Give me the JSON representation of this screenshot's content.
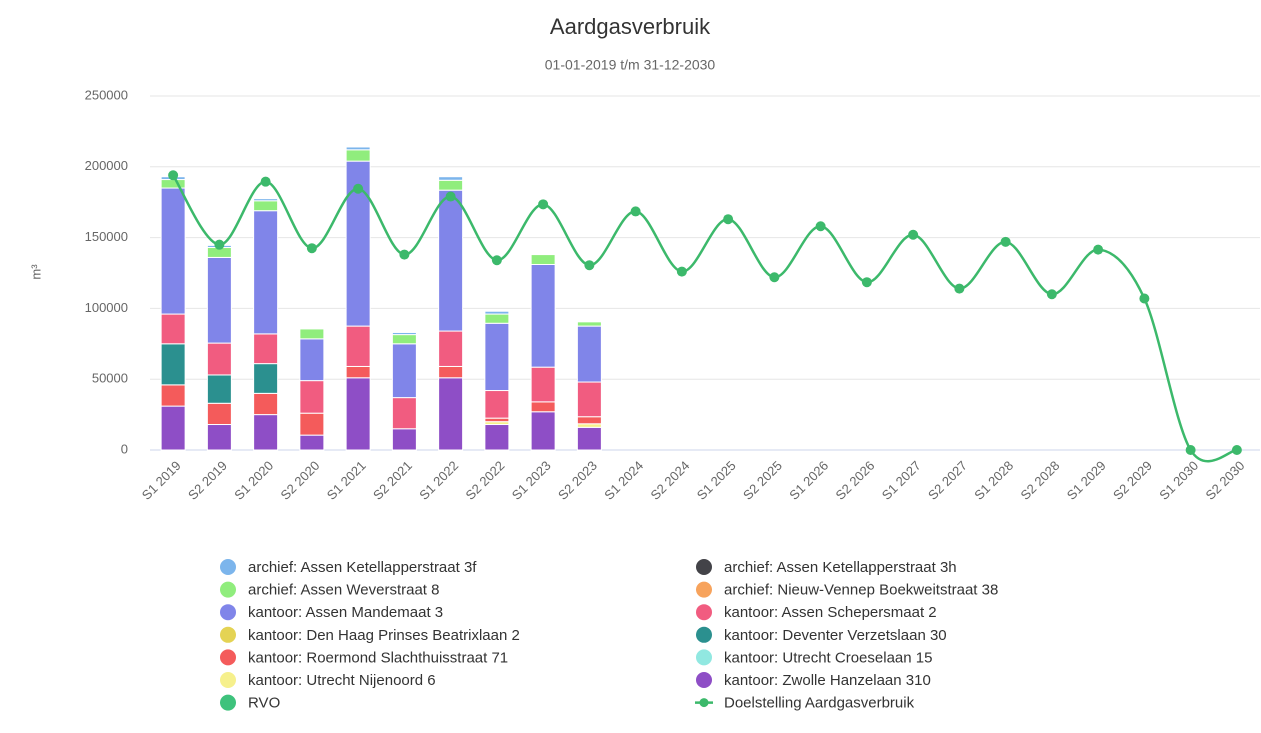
{
  "chart_data": {
    "type": "stacked-bar-line",
    "title": "Aardgasverbruik",
    "subtitle": "01-01-2019 t/m 31-12-2030",
    "y_axis_label": "m³",
    "categories": [
      "S1 2019",
      "S2 2019",
      "S1 2020",
      "S2 2020",
      "S1 2021",
      "S2 2021",
      "S1 2022",
      "S2 2022",
      "S1 2023",
      "S2 2023",
      "S1 2024",
      "S2 2024",
      "S1 2025",
      "S2 2025",
      "S1 2026",
      "S2 2026",
      "S1 2027",
      "S2 2027",
      "S1 2028",
      "S2 2028",
      "S1 2029",
      "S2 2029",
      "S1 2030",
      "S2 2030"
    ],
    "ylim": [
      0,
      250000
    ],
    "yticks": [
      0,
      50000,
      100000,
      150000,
      200000,
      250000
    ],
    "grid": true,
    "series": [
      {
        "name": "archief: Assen Ketellapperstraat 3f",
        "color": "#7cb5ec",
        "type": "bar",
        "values": [
          2000,
          1500,
          1500,
          null,
          2000,
          1500,
          2500,
          2000,
          null,
          null,
          null,
          null,
          null,
          null,
          null,
          null,
          null,
          null,
          null,
          null,
          null,
          null,
          null,
          null
        ]
      },
      {
        "name": "archief: Assen Ketellapperstraat 3h",
        "color": "#434348",
        "type": "bar",
        "values": [
          null,
          null,
          null,
          null,
          null,
          null,
          null,
          null,
          null,
          null,
          null,
          null,
          null,
          null,
          null,
          null,
          null,
          null,
          null,
          null,
          null,
          null,
          null,
          null
        ]
      },
      {
        "name": "archief: Assen Weverstraat 8",
        "color": "#90ed7d",
        "type": "bar",
        "values": [
          6000,
          7000,
          7000,
          7000,
          8000,
          6500,
          7000,
          6500,
          7000,
          3000,
          null,
          null,
          null,
          null,
          null,
          null,
          null,
          null,
          null,
          null,
          null,
          null,
          null,
          null
        ]
      },
      {
        "name": "archief: Nieuw-Vennep Boekweitstraat 38",
        "color": "#f7a35c",
        "type": "bar",
        "values": [
          null,
          null,
          null,
          null,
          null,
          null,
          null,
          null,
          null,
          null,
          null,
          null,
          null,
          null,
          null,
          null,
          null,
          null,
          null,
          null,
          null,
          null,
          null,
          null
        ]
      },
      {
        "name": "kantoor: Assen Mandemaat 3",
        "color": "#8085e9",
        "type": "bar",
        "values": [
          89000,
          60500,
          87000,
          29500,
          116500,
          38000,
          99500,
          47500,
          72500,
          39500,
          null,
          null,
          null,
          null,
          null,
          null,
          null,
          null,
          null,
          null,
          null,
          null,
          null,
          null
        ]
      },
      {
        "name": "kantoor: Assen Schepersmaat 2",
        "color": "#f15c80",
        "type": "bar",
        "values": [
          21000,
          22500,
          21000,
          23000,
          28500,
          22000,
          25000,
          19500,
          24500,
          24500,
          null,
          null,
          null,
          null,
          null,
          null,
          null,
          null,
          null,
          null,
          null,
          null,
          null,
          null
        ]
      },
      {
        "name": "kantoor: Den Haag Prinses Beatrixlaan 2",
        "color": "#e4d354",
        "type": "bar",
        "values": [
          null,
          null,
          null,
          null,
          null,
          null,
          null,
          null,
          null,
          null,
          null,
          null,
          null,
          null,
          null,
          null,
          null,
          null,
          null,
          null,
          null,
          null,
          null,
          null
        ]
      },
      {
        "name": "kantoor: Deventer Verzetslaan 30",
        "color": "#2b908f",
        "type": "bar",
        "values": [
          29000,
          20000,
          21000,
          null,
          null,
          null,
          null,
          null,
          null,
          null,
          null,
          null,
          null,
          null,
          null,
          null,
          null,
          null,
          null,
          null,
          null,
          null,
          null,
          null
        ]
      },
      {
        "name": "kantoor: Roermond Slachthuisstraat 71",
        "color": "#f45b5b",
        "type": "bar",
        "values": [
          15000,
          15000,
          15000,
          15500,
          8000,
          null,
          8000,
          2500,
          7000,
          5000,
          null,
          null,
          null,
          null,
          null,
          null,
          null,
          null,
          null,
          null,
          null,
          null,
          null,
          null
        ]
      },
      {
        "name": "kantoor: Utrecht Croeselaan 15",
        "color": "#91e8e1",
        "type": "bar",
        "values": [
          null,
          null,
          null,
          null,
          null,
          null,
          null,
          null,
          null,
          null,
          null,
          null,
          null,
          null,
          null,
          null,
          null,
          null,
          null,
          null,
          null,
          null,
          null,
          null
        ]
      },
      {
        "name": "kantoor: Utrecht Nijenoord 6",
        "color": "#f6f08c",
        "type": "bar",
        "values": [
          null,
          null,
          null,
          null,
          null,
          null,
          null,
          2000,
          null,
          2500,
          null,
          null,
          null,
          null,
          null,
          null,
          null,
          null,
          null,
          null,
          null,
          null,
          null,
          null
        ]
      },
      {
        "name": "kantoor: Zwolle Hanzelaan 310",
        "color": "#8e4ec6",
        "type": "bar",
        "values": [
          31000,
          18000,
          25000,
          10500,
          51000,
          15000,
          51000,
          18000,
          27000,
          16000,
          null,
          null,
          null,
          null,
          null,
          null,
          null,
          null,
          null,
          null,
          null,
          null,
          null,
          null
        ]
      },
      {
        "name": "RVO",
        "color": "#3ec27c",
        "type": "bar",
        "values": [
          null,
          null,
          null,
          null,
          null,
          null,
          null,
          null,
          null,
          null,
          null,
          null,
          null,
          null,
          null,
          null,
          null,
          null,
          null,
          null,
          null,
          null,
          null,
          null
        ]
      },
      {
        "name": "Doelstelling Aardgasverbruik",
        "color": "#3cb96b",
        "type": "line",
        "values": [
          194000,
          145000,
          189500,
          142500,
          184500,
          138000,
          179000,
          134000,
          173500,
          130500,
          168500,
          126000,
          163000,
          122000,
          158000,
          118500,
          152000,
          114000,
          147000,
          110000,
          141500,
          107000,
          0,
          0
        ]
      }
    ]
  }
}
